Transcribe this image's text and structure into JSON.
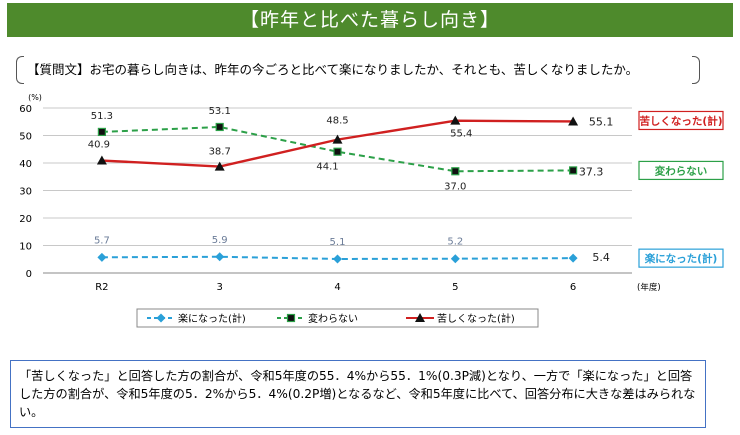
{
  "title": "【昨年と比べた暮らし向き】",
  "question": {
    "label": "【質問文】",
    "text": "お宅の暮らし向きは、昨年の今ごろと比べて楽になりましたか、それとも、苦しくなりましたか。"
  },
  "chart_data": {
    "type": "line",
    "y_unit": "(%)",
    "x_unit": "(年度)",
    "categories": [
      "R2",
      "3",
      "4",
      "5",
      "6"
    ],
    "ylim": [
      0,
      60
    ],
    "yticks": [
      0,
      10,
      20,
      30,
      40,
      50,
      60
    ],
    "series": [
      {
        "key": "easy",
        "name": "楽になった(計)",
        "legend": "楽になった(計)",
        "label": "楽になった(計)",
        "values": [
          5.7,
          5.9,
          5.1,
          5.2,
          5.4
        ],
        "value_labels": [
          "5.7",
          "5.9",
          "5.1",
          "5.2",
          "5.4"
        ],
        "color": "#2aa0d8",
        "marker": "diamond",
        "style": "dashed"
      },
      {
        "key": "same",
        "name": "変わらない",
        "legend": "変わらない",
        "label": "変わらない",
        "values": [
          51.3,
          53.1,
          44.1,
          37.0,
          37.3
        ],
        "value_labels": [
          "51.3",
          "53.1",
          "44.1",
          "37.0",
          "37.3"
        ],
        "color": "#2ca048",
        "marker": "square",
        "style": "dashed"
      },
      {
        "key": "hard",
        "name": "苦しくなった(計)",
        "legend": "苦しくなった(計)",
        "label": "苦しくなった(計)",
        "values": [
          40.9,
          38.7,
          48.5,
          55.4,
          55.1
        ],
        "value_labels": [
          "40.9",
          "38.7",
          "48.5",
          "55.4",
          "55.1"
        ],
        "color": "#d02020",
        "marker": "triangle",
        "style": "solid"
      }
    ]
  },
  "summary": "「苦しくなった」と回答した方の割合が、令和5年度の55．4%から55．1%(0.3P減)となり、一方で「楽になった」と回答した方の割合が、令和5年度の5．2%から5．4%(0.2P増)となるなど、令和5年度に比べて、回答分布に大きな差はみられない。"
}
